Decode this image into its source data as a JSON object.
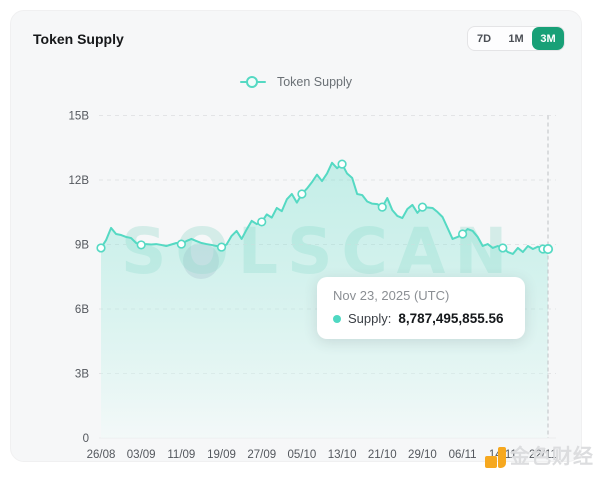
{
  "card": {
    "title": "Token Supply"
  },
  "time_range": {
    "options": [
      "7D",
      "1M",
      "3M"
    ],
    "selected": "3M"
  },
  "legend": {
    "label": "Token Supply"
  },
  "tooltip": {
    "date": "Nov 23, 2025 (UTC)",
    "series_label": "Supply:",
    "value": "8,787,495,855.56"
  },
  "watermark": {
    "text": "SOLSCAN"
  },
  "brand_watermark": {
    "text": "金色财经"
  },
  "colors": {
    "line": "#55d9c3",
    "marker_fill": "#feffff",
    "area_top": "rgba(96,220,199,0.33)",
    "area_bottom": "rgba(240,251,249,0.45)",
    "selected_range_bg": "#18a077",
    "grid": "#e3e4e6",
    "zero_axis": "#ececee",
    "crosshair": "#bfc1c5",
    "axis_text": "#53575d",
    "tooltip_dot": "#4fd8c2",
    "jinse_orange": "#f6a81f"
  },
  "chart_data": {
    "type": "area",
    "title": "Token Supply",
    "series_name": "Token Supply",
    "x_tick_labels": [
      "26/08",
      "03/09",
      "11/09",
      "19/09",
      "27/09",
      "05/10",
      "13/10",
      "21/10",
      "29/10",
      "06/11",
      "14/11",
      "22/11"
    ],
    "x_tick_interval_days": 8,
    "y_tick_labels": [
      "0",
      "3B",
      "6B",
      "9B",
      "12B",
      "15B"
    ],
    "y_tick_values_billions": [
      0,
      3,
      6,
      9,
      12,
      15
    ],
    "ylim_billions": [
      0,
      15
    ],
    "start_date": "26/08",
    "end_date": "23/11",
    "interval": "daily",
    "unit": "tokens (billions)",
    "grid": "dashed-horizontal",
    "legend_position": "top-center",
    "marker_every_days": 8,
    "hover": {
      "index": 89,
      "date": "Nov 23, 2025 (UTC)",
      "value": 8787495855.56
    },
    "values_billions": [
      8.84,
      9.2,
      9.77,
      9.49,
      9.44,
      9.35,
      9.3,
      9.07,
      8.98,
      9.02,
      9.0,
      9.02,
      8.98,
      8.93,
      9.0,
      9.07,
      9.02,
      9.16,
      9.26,
      9.16,
      9.07,
      9.02,
      8.98,
      8.93,
      8.88,
      9.0,
      9.4,
      9.63,
      9.26,
      9.7,
      10.1,
      9.95,
      10.05,
      10.4,
      10.25,
      10.7,
      10.55,
      11.1,
      11.35,
      10.95,
      11.35,
      11.6,
      11.9,
      12.25,
      11.95,
      12.3,
      12.8,
      12.55,
      12.74,
      12.3,
      12.1,
      11.35,
      11.3,
      11.0,
      10.9,
      10.88,
      10.74,
      11.16,
      10.6,
      10.33,
      10.23,
      10.65,
      10.84,
      10.47,
      10.74,
      10.72,
      10.7,
      10.51,
      10.28,
      9.77,
      9.26,
      9.35,
      9.49,
      9.72,
      9.63,
      9.35,
      8.93,
      9.02,
      8.84,
      8.93,
      8.84,
      8.65,
      8.56,
      8.84,
      8.65,
      8.93,
      8.79,
      8.9,
      8.79,
      8.787
    ]
  }
}
